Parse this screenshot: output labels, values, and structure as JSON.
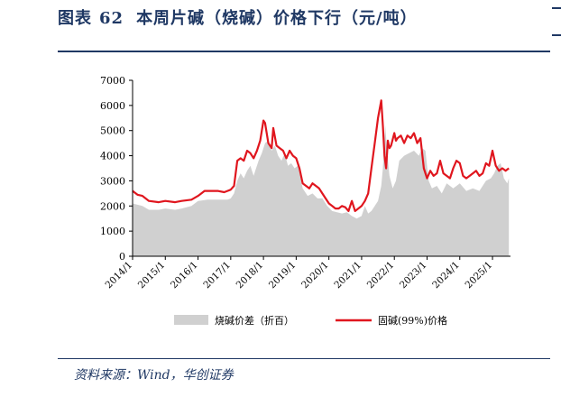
{
  "header": {
    "figure_label": "图表",
    "figure_number": "62",
    "title": "本周片碱（烧碱）价格下行（元/吨）"
  },
  "source": "资料来源：Wind，华创证券",
  "colors": {
    "spread_fill": "#d0d0d0",
    "price_line": "#e0161e",
    "axis": "#000000",
    "title": "#1f3864"
  },
  "chart_data": {
    "type": "area",
    "title": "本周片碱（烧碱）价格下行（元/吨）",
    "xlabel": "",
    "ylabel": "",
    "ylim": [
      0,
      7000
    ],
    "yticks": [
      0,
      1000,
      2000,
      3000,
      4000,
      5000,
      6000,
      7000
    ],
    "xlim": [
      2014.0,
      2025.55
    ],
    "xticks": [
      "2014/1",
      "2015/1",
      "2016/1",
      "2017/1",
      "2018/1",
      "2019/1",
      "2020/1",
      "2021/1",
      "2022/1",
      "2023/1",
      "2024/1",
      "2025/1"
    ],
    "grid": false,
    "legend_position": "bottom",
    "series": [
      {
        "name": "烧碱价差（折百）",
        "type": "area",
        "color": "#d0d0d0",
        "x": [
          2014.0,
          2014.15,
          2014.3,
          2014.5,
          2014.8,
          2015.0,
          2015.3,
          2015.5,
          2015.8,
          2016.0,
          2016.3,
          2016.6,
          2016.9,
          2017.0,
          2017.1,
          2017.2,
          2017.3,
          2017.4,
          2017.5,
          2017.6,
          2017.7,
          2017.75,
          2017.85,
          2017.95,
          2018.05,
          2018.15,
          2018.25,
          2018.35,
          2018.45,
          2018.55,
          2018.65,
          2018.75,
          2018.85,
          2018.95,
          2019.05,
          2019.2,
          2019.35,
          2019.5,
          2019.65,
          2019.8,
          2019.95,
          2020.1,
          2020.25,
          2020.4,
          2020.55,
          2020.7,
          2020.85,
          2021.0,
          2021.1,
          2021.2,
          2021.3,
          2021.4,
          2021.5,
          2021.6,
          2021.65,
          2021.72,
          2021.78,
          2021.85,
          2021.95,
          2022.05,
          2022.15,
          2022.3,
          2022.45,
          2022.6,
          2022.75,
          2022.85,
          2022.95,
          2023.05,
          2023.15,
          2023.3,
          2023.45,
          2023.6,
          2023.8,
          2024.0,
          2024.2,
          2024.4,
          2024.6,
          2024.8,
          2024.95,
          2025.05,
          2025.15,
          2025.25,
          2025.35,
          2025.45,
          2025.5
        ],
        "values": [
          2100,
          2050,
          2000,
          1850,
          1850,
          1900,
          1850,
          1900,
          2000,
          2200,
          2250,
          2250,
          2250,
          2300,
          2500,
          3000,
          3300,
          3100,
          3400,
          3600,
          3200,
          3400,
          3800,
          4100,
          4500,
          4600,
          4200,
          4400,
          4000,
          3800,
          4100,
          3600,
          3700,
          3500,
          3600,
          2700,
          2400,
          2500,
          2300,
          2300,
          2000,
          1800,
          1750,
          1700,
          1750,
          1600,
          1500,
          1600,
          2000,
          1700,
          1800,
          2000,
          2200,
          2800,
          3500,
          5200,
          4200,
          3200,
          2700,
          3000,
          3800,
          4000,
          4100,
          4200,
          4000,
          4300,
          4200,
          3000,
          2700,
          2800,
          2500,
          2900,
          2700,
          2900,
          2600,
          2700,
          2600,
          3000,
          3100,
          3300,
          3600,
          3700,
          3100,
          2900,
          3100
        ]
      },
      {
        "name": "固碱(99%)价格",
        "type": "line",
        "color": "#e0161e",
        "x": [
          2014.0,
          2014.15,
          2014.3,
          2014.5,
          2014.8,
          2015.0,
          2015.3,
          2015.5,
          2015.8,
          2016.0,
          2016.2,
          2016.4,
          2016.6,
          2016.8,
          2016.9,
          2017.0,
          2017.1,
          2017.2,
          2017.3,
          2017.4,
          2017.5,
          2017.6,
          2017.7,
          2017.8,
          2017.9,
          2018.0,
          2018.05,
          2018.15,
          2018.25,
          2018.3,
          2018.4,
          2018.5,
          2018.6,
          2018.7,
          2018.8,
          2018.9,
          2019.0,
          2019.1,
          2019.2,
          2019.3,
          2019.4,
          2019.5,
          2019.6,
          2019.7,
          2019.8,
          2019.9,
          2020.0,
          2020.1,
          2020.2,
          2020.3,
          2020.4,
          2020.5,
          2020.6,
          2020.7,
          2020.8,
          2020.9,
          2021.0,
          2021.1,
          2021.2,
          2021.3,
          2021.4,
          2021.5,
          2021.6,
          2021.65,
          2021.7,
          2021.75,
          2021.8,
          2021.85,
          2021.9,
          2022.0,
          2022.05,
          2022.1,
          2022.2,
          2022.3,
          2022.4,
          2022.5,
          2022.6,
          2022.7,
          2022.8,
          2022.9,
          2023.0,
          2023.1,
          2023.2,
          2023.3,
          2023.4,
          2023.5,
          2023.6,
          2023.7,
          2023.8,
          2023.9,
          2024.0,
          2024.1,
          2024.2,
          2024.3,
          2024.4,
          2024.5,
          2024.6,
          2024.7,
          2024.8,
          2024.9,
          2025.0,
          2025.1,
          2025.2,
          2025.3,
          2025.4,
          2025.5
        ],
        "values": [
          2600,
          2450,
          2400,
          2200,
          2150,
          2200,
          2150,
          2200,
          2250,
          2400,
          2600,
          2600,
          2600,
          2550,
          2600,
          2650,
          2800,
          3800,
          3900,
          3800,
          4200,
          4100,
          3900,
          4200,
          4600,
          5400,
          5300,
          4500,
          4300,
          5100,
          4400,
          4300,
          4200,
          3900,
          4200,
          4000,
          3900,
          3500,
          2900,
          2800,
          2700,
          2900,
          2800,
          2700,
          2500,
          2300,
          2100,
          2000,
          1900,
          1900,
          2000,
          1950,
          1800,
          2200,
          1800,
          1900,
          2000,
          2200,
          2500,
          3500,
          4500,
          5500,
          6200,
          5200,
          4000,
          3500,
          4600,
          4300,
          4400,
          4900,
          4600,
          4700,
          4800,
          4500,
          4800,
          4700,
          4900,
          4500,
          4700,
          3500,
          3100,
          3400,
          3200,
          3300,
          3800,
          3300,
          3200,
          3100,
          3500,
          3800,
          3700,
          3200,
          3100,
          3200,
          3300,
          3400,
          3200,
          3300,
          3700,
          3600,
          4200,
          3600,
          3400,
          3500,
          3400,
          3500
        ]
      }
    ]
  }
}
